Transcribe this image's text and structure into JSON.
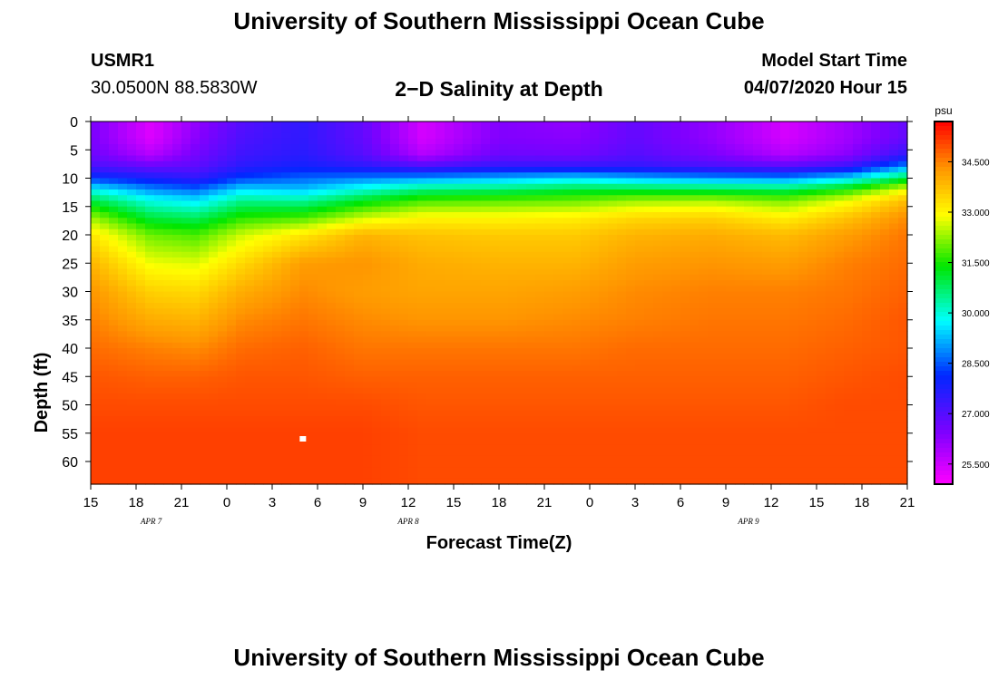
{
  "header": {
    "title_top": "University of Southern Mississippi Ocean Cube",
    "station_id": "USMR1",
    "station_coords": "30.0500N 88.5830W",
    "plot_title": "2−D Salinity at Depth",
    "model_start_label": "Model Start Time",
    "model_start_value": "04/07/2020 Hour 15",
    "title_bottom": "University of Southern Mississippi Ocean Cube"
  },
  "chart_data": {
    "type": "heatmap",
    "title": "2−D Salinity at Depth",
    "xlabel": "Forecast Time(Z)",
    "ylabel": "Depth (ft)",
    "x_tick_labels": [
      "15",
      "18",
      "21",
      "0",
      "3",
      "6",
      "9",
      "12",
      "15",
      "18",
      "21",
      "0",
      "3",
      "6",
      "9",
      "12",
      "15",
      "18",
      "21"
    ],
    "x_range_hours": [
      0,
      54
    ],
    "date_labels": [
      {
        "label": "APR  7",
        "hour": 4
      },
      {
        "label": "APR  8",
        "hour": 21
      },
      {
        "label": "APR  9",
        "hour": 43.5
      }
    ],
    "y_ticks": [
      0,
      5,
      10,
      15,
      20,
      25,
      30,
      35,
      40,
      45,
      50,
      55,
      60
    ],
    "y_range": [
      0,
      64
    ],
    "y_inverted": true,
    "colorbar": {
      "unit": "psu",
      "range": [
        24.9,
        35.7
      ],
      "tick_values": [
        34.5,
        33.0,
        31.5,
        30.0,
        28.5,
        27.0,
        25.5
      ],
      "tick_labels": [
        "34.500",
        "33.000",
        "31.500",
        "30.000",
        "28.500",
        "27.000",
        "25.500"
      ]
    },
    "profile_depths": [
      0,
      3,
      6,
      8,
      10,
      12,
      14,
      17,
      20,
      25,
      30,
      35,
      40,
      45,
      50,
      55,
      60,
      64
    ],
    "profiles": [
      {
        "hour": 0,
        "values": [
          26.5,
          26.5,
          26.7,
          27.2,
          28.2,
          29.8,
          31.0,
          32.3,
          33.2,
          33.9,
          34.3,
          34.5,
          34.7,
          34.9,
          35.0,
          35.1,
          35.1,
          35.1
        ]
      },
      {
        "hour": 4,
        "values": [
          25.3,
          25.3,
          25.8,
          26.8,
          27.8,
          28.9,
          29.9,
          31.0,
          32.0,
          32.8,
          33.5,
          34.0,
          34.5,
          34.8,
          35.0,
          35.1,
          35.1,
          35.1
        ]
      },
      {
        "hour": 7,
        "values": [
          26.2,
          26.3,
          26.6,
          26.9,
          27.5,
          28.6,
          29.6,
          30.8,
          31.8,
          32.7,
          33.4,
          33.9,
          34.4,
          34.8,
          35.0,
          35.1,
          35.1,
          35.1
        ]
      },
      {
        "hour": 10,
        "values": [
          27.0,
          27.1,
          27.3,
          27.6,
          28.3,
          29.5,
          30.5,
          31.6,
          32.6,
          33.4,
          34.0,
          34.4,
          34.7,
          34.9,
          35.0,
          35.1,
          35.1,
          35.1
        ]
      },
      {
        "hour": 14,
        "values": [
          27.5,
          27.5,
          27.6,
          27.9,
          28.6,
          29.3,
          30.4,
          31.8,
          33.2,
          34.2,
          34.4,
          34.6,
          34.8,
          34.9,
          35.0,
          35.1,
          35.1,
          35.1
        ]
      },
      {
        "hour": 18,
        "values": [
          26.8,
          26.8,
          27.0,
          27.6,
          28.8,
          30.0,
          31.2,
          32.6,
          33.9,
          34.3,
          34.2,
          34.4,
          34.6,
          34.8,
          35.0,
          35.1,
          35.1,
          35.1
        ]
      },
      {
        "hour": 22,
        "values": [
          25.4,
          25.4,
          25.8,
          27.2,
          29.0,
          30.6,
          31.8,
          33.0,
          33.7,
          34.0,
          34.1,
          34.3,
          34.6,
          34.8,
          34.9,
          35.0,
          35.0,
          35.0
        ]
      },
      {
        "hour": 27,
        "values": [
          26.4,
          26.4,
          26.7,
          27.5,
          29.2,
          30.7,
          31.9,
          33.0,
          33.6,
          33.9,
          34.1,
          34.3,
          34.6,
          34.8,
          34.9,
          35.0,
          35.0,
          35.0
        ]
      },
      {
        "hour": 32,
        "values": [
          26.2,
          26.3,
          26.6,
          27.5,
          29.5,
          31.0,
          32.0,
          33.1,
          33.6,
          33.9,
          34.2,
          34.4,
          34.6,
          34.8,
          34.9,
          35.0,
          35.0,
          35.0
        ]
      },
      {
        "hour": 36,
        "values": [
          26.8,
          26.8,
          27.0,
          27.5,
          29.2,
          31.0,
          32.3,
          33.4,
          33.9,
          34.2,
          34.4,
          34.5,
          34.7,
          34.8,
          34.9,
          35.0,
          35.0,
          35.0
        ]
      },
      {
        "hour": 41,
        "values": [
          26.2,
          26.2,
          26.5,
          27.2,
          29.0,
          30.9,
          32.4,
          33.5,
          34.0,
          34.3,
          34.5,
          34.6,
          34.7,
          34.8,
          34.9,
          35.0,
          35.0,
          35.0
        ]
      },
      {
        "hour": 46,
        "values": [
          25.4,
          25.4,
          25.8,
          27.0,
          28.9,
          30.8,
          32.1,
          33.1,
          33.8,
          34.2,
          34.5,
          34.6,
          34.7,
          34.8,
          34.9,
          35.0,
          35.0,
          35.0
        ]
      },
      {
        "hour": 50,
        "values": [
          26.0,
          26.0,
          26.3,
          27.4,
          29.5,
          31.5,
          32.8,
          33.7,
          34.2,
          34.5,
          34.6,
          34.7,
          34.8,
          34.9,
          35.0,
          35.0,
          35.0,
          35.0
        ]
      },
      {
        "hour": 54,
        "values": [
          26.8,
          26.8,
          27.5,
          29.0,
          31.0,
          32.8,
          33.8,
          34.4,
          34.6,
          34.7,
          34.8,
          34.9,
          34.9,
          35.0,
          35.0,
          35.0,
          35.0,
          35.0
        ]
      }
    ],
    "marker": {
      "hour": 14,
      "depth": 56
    }
  }
}
